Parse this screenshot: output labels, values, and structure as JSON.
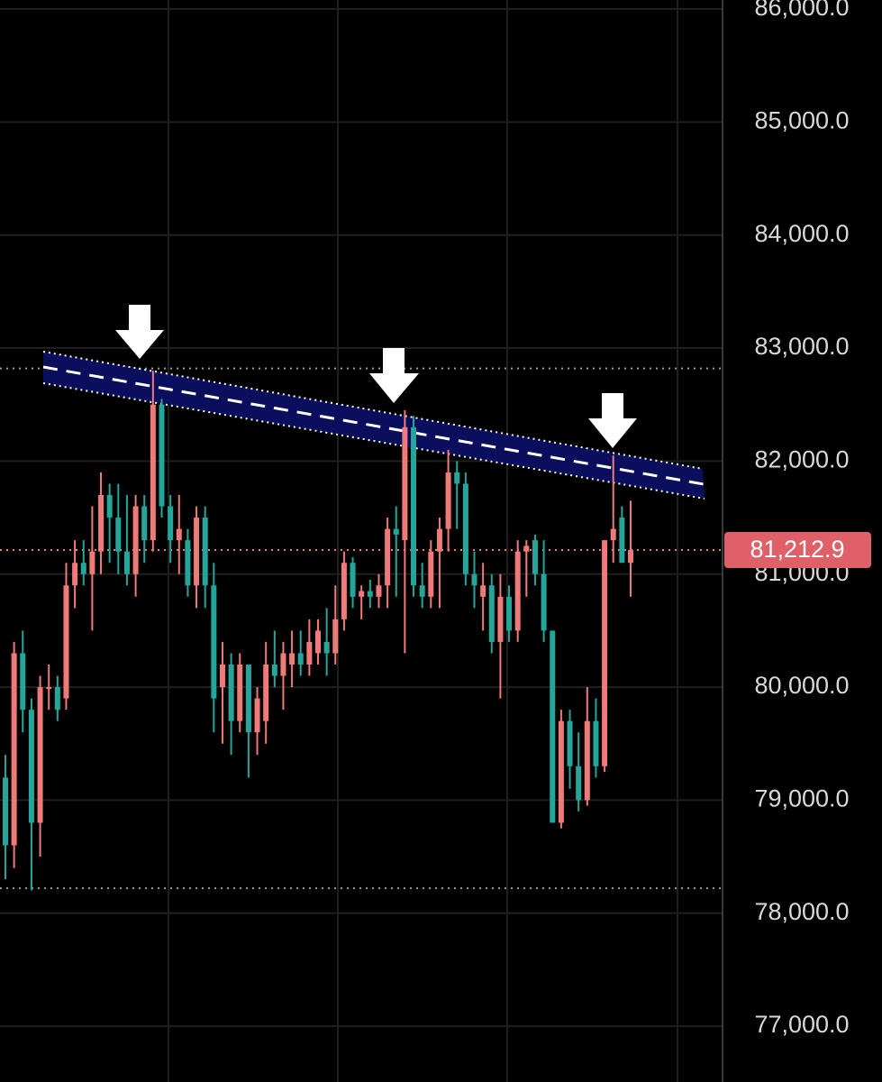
{
  "chart_data": {
    "type": "candlestick",
    "ylim": [
      76506,
      86080
    ],
    "yticks": [
      {
        "value": 86000,
        "label": "86,000.0"
      },
      {
        "value": 85000,
        "label": "85,000.0"
      },
      {
        "value": 84000,
        "label": "84,000.0"
      },
      {
        "value": 83000,
        "label": "83,000.0"
      },
      {
        "value": 82000,
        "label": "82,000.0"
      },
      {
        "value": 81000,
        "label": "81,000.0"
      },
      {
        "value": 80000,
        "label": "80,000.0"
      },
      {
        "value": 79000,
        "label": "79,000.0"
      },
      {
        "value": 78000,
        "label": "78,000.0"
      },
      {
        "value": 77000,
        "label": "77,000.0"
      }
    ],
    "grid": true,
    "up_color": "#ef7a7a",
    "down_color": "#26a69a",
    "levels": [
      82820,
      78220
    ],
    "last_price": {
      "value": 81212.9,
      "label": "81,212.9"
    },
    "candles": {
      "open": [
        79200,
        78600,
        80300,
        79800,
        78800,
        80000,
        80000,
        79900,
        80900,
        81100,
        81000,
        81200,
        81700,
        81500,
        81200,
        81000,
        81600,
        81300,
        82500,
        81600,
        81300,
        81300,
        80900,
        81500,
        80900,
        80000,
        80200,
        79700,
        80200,
        79600,
        79700,
        80200,
        80100,
        80200,
        80300,
        80200,
        80300,
        80400,
        80300,
        80600,
        81100,
        80800,
        80850,
        80800,
        80900,
        81400,
        81300,
        82300,
        80900,
        80800,
        81200,
        81400,
        81900,
        81800,
        81000,
        80800,
        80900,
        80400,
        80800,
        80500,
        81200,
        81300,
        81000,
        80500,
        78800,
        79700,
        79300,
        79000,
        79700,
        79300,
        81300,
        81500,
        81100
      ],
      "high": [
        79400,
        80400,
        80500,
        79900,
        80100,
        80200,
        80100,
        81100,
        81300,
        81300,
        81600,
        81900,
        81800,
        81800,
        81700,
        81700,
        81700,
        82800,
        82550,
        81700,
        81700,
        81400,
        81600,
        81600,
        81100,
        80400,
        80300,
        80300,
        80200,
        80000,
        80400,
        80500,
        80400,
        80500,
        80500,
        80600,
        80600,
        80700,
        80900,
        81200,
        81150,
        80900,
        80950,
        81000,
        81500,
        81600,
        82450,
        82400,
        81100,
        81300,
        81500,
        82100,
        82000,
        81900,
        81200,
        81100,
        81000,
        81000,
        80900,
        81300,
        81300,
        81350,
        81300,
        80500,
        79800,
        79800,
        79600,
        80000,
        79900,
        81300,
        82050,
        81600,
        81650
      ],
      "low": [
        78300,
        78400,
        79600,
        78200,
        78500,
        79800,
        79700,
        79800,
        80700,
        80900,
        80500,
        81000,
        81100,
        81000,
        80900,
        80800,
        81100,
        81200,
        81500,
        81100,
        81000,
        80800,
        80700,
        80700,
        79600,
        79500,
        79400,
        79600,
        79200,
        79400,
        79500,
        80000,
        79800,
        80000,
        80100,
        80100,
        80200,
        80100,
        80200,
        80500,
        80700,
        80600,
        80700,
        80700,
        80700,
        80800,
        80300,
        80800,
        80700,
        80700,
        80700,
        81200,
        81400,
        80900,
        80700,
        80500,
        80300,
        79900,
        80400,
        80400,
        80800,
        80900,
        80400,
        78800,
        78750,
        79100,
        78900,
        78950,
        79200,
        79250,
        81100,
        81100,
        80800
      ],
      "close": [
        78600,
        80300,
        79800,
        78800,
        80000,
        80000,
        79800,
        80900,
        81100,
        81000,
        81200,
        81700,
        81500,
        81200,
        81000,
        81600,
        81300,
        82500,
        81600,
        81300,
        81400,
        80900,
        81500,
        80900,
        79900,
        80200,
        79700,
        80200,
        79600,
        79900,
        80200,
        80100,
        80300,
        80300,
        80200,
        80400,
        80500,
        80300,
        80600,
        81100,
        80800,
        80850,
        80800,
        80900,
        81400,
        81350,
        82300,
        80900,
        80800,
        81200,
        81400,
        81900,
        81800,
        81000,
        80900,
        80900,
        80400,
        80800,
        80500,
        81200,
        81250,
        81000,
        80500,
        78800,
        79700,
        79300,
        79000,
        79700,
        79300,
        81300,
        81400,
        81100,
        81212.9
      ]
    }
  }
}
